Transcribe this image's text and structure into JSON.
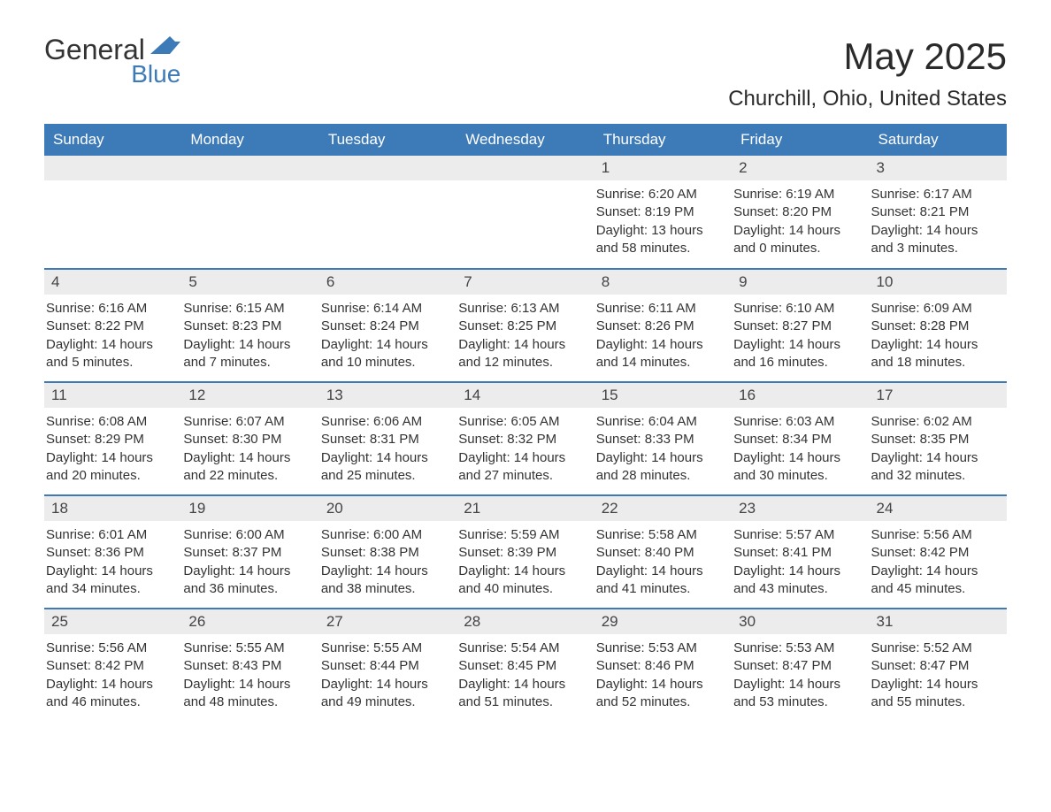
{
  "brand": {
    "word1": "General",
    "word2": "Blue",
    "flag_color": "#3d7ab8"
  },
  "title": "May 2025",
  "location": "Churchill, Ohio, United States",
  "colors": {
    "header_bg": "#3d7ab8",
    "header_text": "#ffffff",
    "daynum_bg": "#ececec",
    "body_text": "#333333",
    "row_border": "#3d7ab8",
    "page_bg": "#ffffff"
  },
  "typography": {
    "title_fontsize": 42,
    "location_fontsize": 24,
    "header_fontsize": 17,
    "daynum_fontsize": 17,
    "body_fontsize": 15
  },
  "layout": {
    "columns": 7,
    "rows": 5,
    "first_weekday_index": 4
  },
  "weekdays": [
    "Sunday",
    "Monday",
    "Tuesday",
    "Wednesday",
    "Thursday",
    "Friday",
    "Saturday"
  ],
  "days": [
    {
      "n": "1",
      "sunrise": "Sunrise: 6:20 AM",
      "sunset": "Sunset: 8:19 PM",
      "daylight": "Daylight: 13 hours and 58 minutes."
    },
    {
      "n": "2",
      "sunrise": "Sunrise: 6:19 AM",
      "sunset": "Sunset: 8:20 PM",
      "daylight": "Daylight: 14 hours and 0 minutes."
    },
    {
      "n": "3",
      "sunrise": "Sunrise: 6:17 AM",
      "sunset": "Sunset: 8:21 PM",
      "daylight": "Daylight: 14 hours and 3 minutes."
    },
    {
      "n": "4",
      "sunrise": "Sunrise: 6:16 AM",
      "sunset": "Sunset: 8:22 PM",
      "daylight": "Daylight: 14 hours and 5 minutes."
    },
    {
      "n": "5",
      "sunrise": "Sunrise: 6:15 AM",
      "sunset": "Sunset: 8:23 PM",
      "daylight": "Daylight: 14 hours and 7 minutes."
    },
    {
      "n": "6",
      "sunrise": "Sunrise: 6:14 AM",
      "sunset": "Sunset: 8:24 PM",
      "daylight": "Daylight: 14 hours and 10 minutes."
    },
    {
      "n": "7",
      "sunrise": "Sunrise: 6:13 AM",
      "sunset": "Sunset: 8:25 PM",
      "daylight": "Daylight: 14 hours and 12 minutes."
    },
    {
      "n": "8",
      "sunrise": "Sunrise: 6:11 AM",
      "sunset": "Sunset: 8:26 PM",
      "daylight": "Daylight: 14 hours and 14 minutes."
    },
    {
      "n": "9",
      "sunrise": "Sunrise: 6:10 AM",
      "sunset": "Sunset: 8:27 PM",
      "daylight": "Daylight: 14 hours and 16 minutes."
    },
    {
      "n": "10",
      "sunrise": "Sunrise: 6:09 AM",
      "sunset": "Sunset: 8:28 PM",
      "daylight": "Daylight: 14 hours and 18 minutes."
    },
    {
      "n": "11",
      "sunrise": "Sunrise: 6:08 AM",
      "sunset": "Sunset: 8:29 PM",
      "daylight": "Daylight: 14 hours and 20 minutes."
    },
    {
      "n": "12",
      "sunrise": "Sunrise: 6:07 AM",
      "sunset": "Sunset: 8:30 PM",
      "daylight": "Daylight: 14 hours and 22 minutes."
    },
    {
      "n": "13",
      "sunrise": "Sunrise: 6:06 AM",
      "sunset": "Sunset: 8:31 PM",
      "daylight": "Daylight: 14 hours and 25 minutes."
    },
    {
      "n": "14",
      "sunrise": "Sunrise: 6:05 AM",
      "sunset": "Sunset: 8:32 PM",
      "daylight": "Daylight: 14 hours and 27 minutes."
    },
    {
      "n": "15",
      "sunrise": "Sunrise: 6:04 AM",
      "sunset": "Sunset: 8:33 PM",
      "daylight": "Daylight: 14 hours and 28 minutes."
    },
    {
      "n": "16",
      "sunrise": "Sunrise: 6:03 AM",
      "sunset": "Sunset: 8:34 PM",
      "daylight": "Daylight: 14 hours and 30 minutes."
    },
    {
      "n": "17",
      "sunrise": "Sunrise: 6:02 AM",
      "sunset": "Sunset: 8:35 PM",
      "daylight": "Daylight: 14 hours and 32 minutes."
    },
    {
      "n": "18",
      "sunrise": "Sunrise: 6:01 AM",
      "sunset": "Sunset: 8:36 PM",
      "daylight": "Daylight: 14 hours and 34 minutes."
    },
    {
      "n": "19",
      "sunrise": "Sunrise: 6:00 AM",
      "sunset": "Sunset: 8:37 PM",
      "daylight": "Daylight: 14 hours and 36 minutes."
    },
    {
      "n": "20",
      "sunrise": "Sunrise: 6:00 AM",
      "sunset": "Sunset: 8:38 PM",
      "daylight": "Daylight: 14 hours and 38 minutes."
    },
    {
      "n": "21",
      "sunrise": "Sunrise: 5:59 AM",
      "sunset": "Sunset: 8:39 PM",
      "daylight": "Daylight: 14 hours and 40 minutes."
    },
    {
      "n": "22",
      "sunrise": "Sunrise: 5:58 AM",
      "sunset": "Sunset: 8:40 PM",
      "daylight": "Daylight: 14 hours and 41 minutes."
    },
    {
      "n": "23",
      "sunrise": "Sunrise: 5:57 AM",
      "sunset": "Sunset: 8:41 PM",
      "daylight": "Daylight: 14 hours and 43 minutes."
    },
    {
      "n": "24",
      "sunrise": "Sunrise: 5:56 AM",
      "sunset": "Sunset: 8:42 PM",
      "daylight": "Daylight: 14 hours and 45 minutes."
    },
    {
      "n": "25",
      "sunrise": "Sunrise: 5:56 AM",
      "sunset": "Sunset: 8:42 PM",
      "daylight": "Daylight: 14 hours and 46 minutes."
    },
    {
      "n": "26",
      "sunrise": "Sunrise: 5:55 AM",
      "sunset": "Sunset: 8:43 PM",
      "daylight": "Daylight: 14 hours and 48 minutes."
    },
    {
      "n": "27",
      "sunrise": "Sunrise: 5:55 AM",
      "sunset": "Sunset: 8:44 PM",
      "daylight": "Daylight: 14 hours and 49 minutes."
    },
    {
      "n": "28",
      "sunrise": "Sunrise: 5:54 AM",
      "sunset": "Sunset: 8:45 PM",
      "daylight": "Daylight: 14 hours and 51 minutes."
    },
    {
      "n": "29",
      "sunrise": "Sunrise: 5:53 AM",
      "sunset": "Sunset: 8:46 PM",
      "daylight": "Daylight: 14 hours and 52 minutes."
    },
    {
      "n": "30",
      "sunrise": "Sunrise: 5:53 AM",
      "sunset": "Sunset: 8:47 PM",
      "daylight": "Daylight: 14 hours and 53 minutes."
    },
    {
      "n": "31",
      "sunrise": "Sunrise: 5:52 AM",
      "sunset": "Sunset: 8:47 PM",
      "daylight": "Daylight: 14 hours and 55 minutes."
    }
  ]
}
